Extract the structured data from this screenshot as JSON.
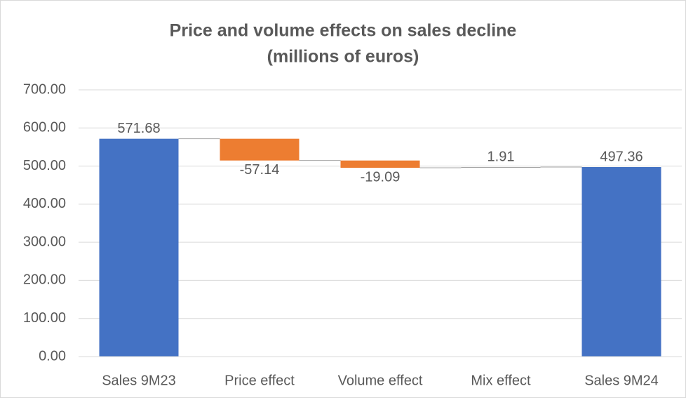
{
  "chart_data": {
    "type": "waterfall",
    "title": "Price and volume effects on sales decline",
    "subtitle": "(millions of euros)",
    "categories": [
      "Sales 9M23",
      "Price effect",
      "Volume effect",
      "Mix effect",
      "Sales 9M24"
    ],
    "values": [
      571.68,
      -57.14,
      -19.09,
      1.91,
      497.36
    ],
    "totals": [
      true,
      false,
      false,
      false,
      true
    ],
    "colors": {
      "total": "#4472c4",
      "decrease": "#ed7d31",
      "increase": "#a5a5a5"
    },
    "ylim": [
      0,
      700
    ],
    "yticks": [
      {
        "value": 0,
        "label": "0.00"
      },
      {
        "value": 100,
        "label": "100.00"
      },
      {
        "value": 200,
        "label": "200.00"
      },
      {
        "value": 300,
        "label": "300.00"
      },
      {
        "value": 400,
        "label": "400.00"
      },
      {
        "value": 500,
        "label": "500.00"
      },
      {
        "value": 600,
        "label": "600.00"
      },
      {
        "value": 700,
        "label": "700.00"
      }
    ],
    "grid": true
  }
}
